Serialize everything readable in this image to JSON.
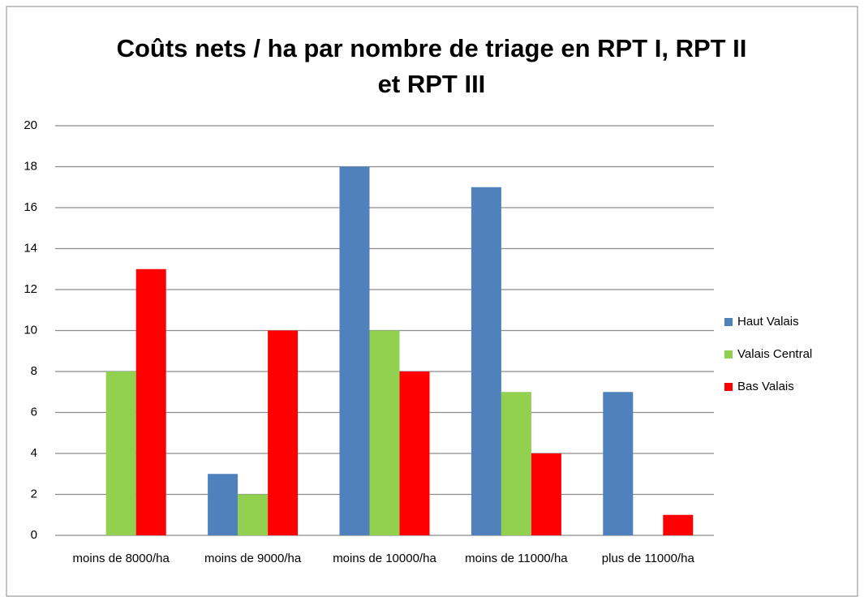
{
  "chart_data": {
    "type": "bar",
    "title": "Coûts nets / ha par nombre de triage en RPT I, RPT II et RPT III",
    "categories": [
      "moins de 8000/ha",
      "moins de 9000/ha",
      "moins de 10000/ha",
      "moins de 11000/ha",
      "plus de 11000/ha"
    ],
    "series": [
      {
        "name": "Haut Valais",
        "color": "#4f81bd",
        "values": [
          0,
          3,
          18,
          17,
          7
        ]
      },
      {
        "name": "Valais Central",
        "color": "#92d050",
        "values": [
          8,
          2,
          10,
          7,
          0
        ]
      },
      {
        "name": "Bas Valais",
        "color": "#ff0000",
        "values": [
          13,
          10,
          8,
          4,
          1
        ]
      }
    ],
    "ylim": [
      0,
      20
    ],
    "yticks": [
      0,
      2,
      4,
      6,
      8,
      10,
      12,
      14,
      16,
      18,
      20
    ],
    "grid": true,
    "legend": "right"
  }
}
